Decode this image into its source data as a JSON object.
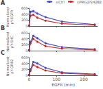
{
  "chart_data": [
    {
      "type": "line",
      "title": "A",
      "ylabel": "Normalized\npY-EGFR",
      "x": [
        0,
        5,
        15,
        30,
        60,
        120,
        240
      ],
      "series": [
        {
          "name": "siCtrl",
          "color": "#4444bb",
          "marker": "circle",
          "values": [
            20,
            480,
            500,
            420,
            300,
            150,
            50
          ],
          "errors": [
            5,
            45,
            50,
            40,
            30,
            18,
            8
          ]
        },
        {
          "name": "siPRG2/SH2B2",
          "color": "#cc2222",
          "marker": "circle",
          "values": [
            20,
            350,
            380,
            280,
            180,
            80,
            30
          ],
          "errors": [
            5,
            35,
            38,
            28,
            20,
            10,
            6
          ]
        }
      ],
      "xlim": [
        0,
        250
      ],
      "xticks": [
        0,
        100,
        200
      ],
      "ylim": [
        0,
        600
      ],
      "yticks": [
        0,
        200,
        400,
        600
      ],
      "grid": false,
      "legend": "upper right",
      "tick_labels": "y"
    },
    {
      "type": "line",
      "title": "B",
      "ylabel": "Normalized\npY-SHC",
      "x": [
        0,
        5,
        15,
        30,
        60,
        120,
        240
      ],
      "series": [
        {
          "name": "siCtrl",
          "color": "#4444bb",
          "marker": "circle",
          "values": [
            20,
            300,
            500,
            420,
            250,
            120,
            50
          ],
          "errors": [
            5,
            35,
            50,
            42,
            28,
            15,
            8
          ]
        },
        {
          "name": "siPRG2/SH2B2",
          "color": "#cc2222",
          "marker": "circle",
          "values": [
            20,
            250,
            400,
            300,
            150,
            70,
            25
          ],
          "errors": [
            5,
            28,
            40,
            30,
            18,
            10,
            5
          ]
        }
      ],
      "xlim": [
        0,
        250
      ],
      "xticks": [
        0,
        100,
        200
      ],
      "ylim": [
        0,
        600
      ],
      "yticks": [
        0,
        200,
        400,
        600
      ],
      "grid": false,
      "tick_labels": "y"
    },
    {
      "type": "line",
      "title": "C",
      "ylabel": "Normalized\npY-GRB2",
      "xlabel": "EGFR (min)",
      "x": [
        0,
        5,
        15,
        30,
        60,
        120,
        240
      ],
      "series": [
        {
          "name": "siCtrl",
          "color": "#4444bb",
          "marker": "circle",
          "values": [
            15,
            200,
            450,
            400,
            250,
            100,
            40
          ],
          "errors": [
            4,
            25,
            45,
            40,
            28,
            12,
            7
          ]
        },
        {
          "name": "siPRG2/SH2B2",
          "color": "#cc2222",
          "marker": "circle",
          "values": [
            15,
            150,
            350,
            280,
            160,
            70,
            25
          ],
          "errors": [
            4,
            20,
            35,
            30,
            18,
            9,
            5
          ]
        }
      ],
      "xlim": [
        0,
        250
      ],
      "xticks": [
        0,
        100,
        200
      ],
      "ylim": [
        0,
        600
      ],
      "yticks": [
        0,
        200,
        400,
        600
      ],
      "grid": false
    }
  ]
}
